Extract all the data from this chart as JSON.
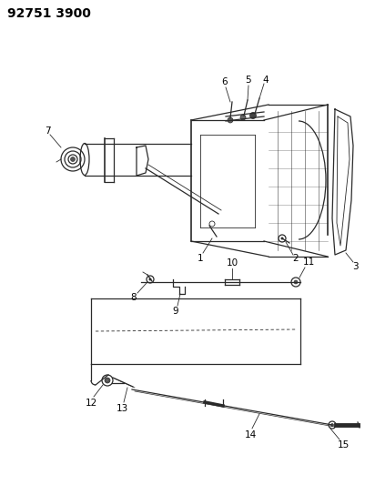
{
  "title": "92751 3900",
  "bg_color": "#ffffff",
  "line_color": "#2a2a2a",
  "label_color": "#000000",
  "title_fontsize": 10,
  "label_fontsize": 7.5,
  "figsize": [
    4.02,
    5.33
  ],
  "dpi": 100
}
